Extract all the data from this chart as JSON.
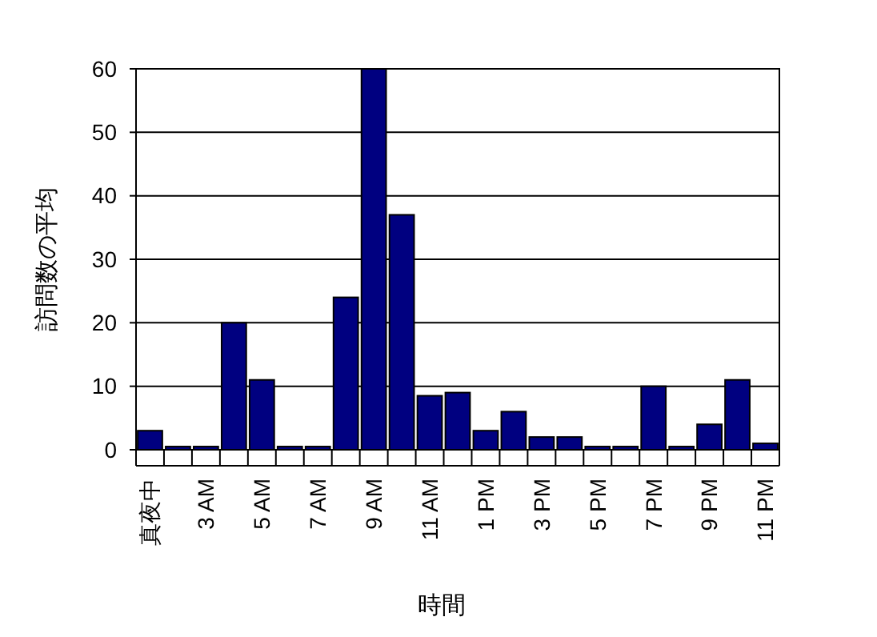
{
  "chart_data": {
    "type": "bar",
    "xlabel": "時間",
    "ylabel": "訪問数の平均",
    "categories": [
      "真夜中",
      null,
      "3 AM",
      null,
      "5 AM",
      null,
      "7 AM",
      null,
      "9 AM",
      null,
      "11 AM",
      null,
      "1 PM",
      null,
      "3 PM",
      null,
      "5 PM",
      null,
      "7 PM",
      null,
      "9 PM",
      null,
      "11 PM"
    ],
    "values": [
      3,
      0.5,
      0.5,
      20,
      11,
      0.5,
      0.5,
      24,
      60,
      37,
      8.5,
      9,
      3,
      6,
      2,
      2,
      0.5,
      0.5,
      10,
      0.5,
      4,
      11,
      1
    ],
    "color": "#000080",
    "ylim": [
      0,
      60
    ],
    "yticks": [
      0,
      10,
      20,
      30,
      40,
      50,
      60
    ],
    "grid": "y"
  }
}
